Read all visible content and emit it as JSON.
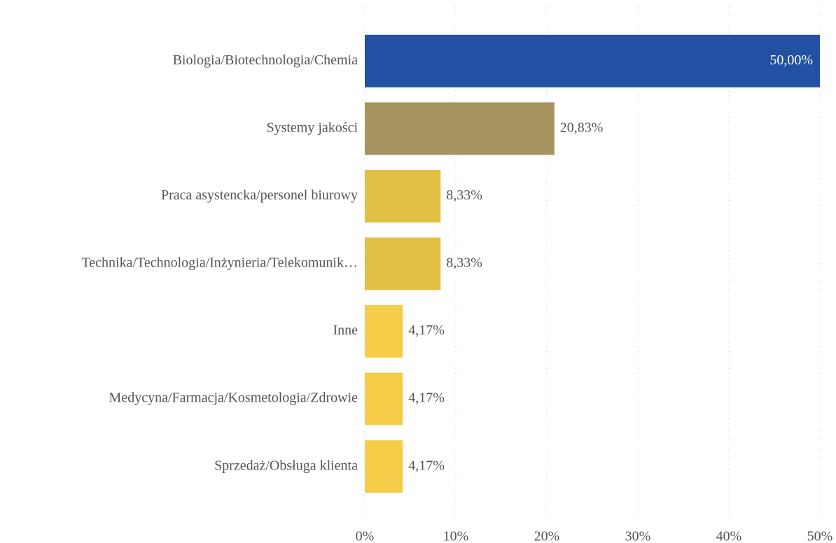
{
  "chart_data": {
    "type": "bar",
    "orientation": "horizontal",
    "categories": [
      "Biologia/Biotechnologia/Chemia",
      "Systemy jakości",
      "Praca asystencka/personel biurowy",
      "Technika/Technologia/Inżynieria/Telekomunik…",
      "Inne",
      "Medycyna/Farmacja/Kosmetologia/Zdrowie",
      "Sprzedaż/Obsługa klienta"
    ],
    "values": [
      50,
      20.83,
      8.33,
      8.33,
      4.17,
      4.17,
      4.17
    ],
    "value_labels": [
      "50,00%",
      "20,83%",
      "8,33%",
      "8,33%",
      "4,17%",
      "4,17%",
      "4,17%"
    ],
    "colors": [
      "#2251a3",
      "#a89460",
      "#e2bf45",
      "#e2bf45",
      "#f5cd48",
      "#f5cd48",
      "#f5cd48"
    ],
    "xlim": [
      0,
      50
    ],
    "xticks": [
      {
        "value": 0,
        "label": "0%"
      },
      {
        "value": 10,
        "label": "10%"
      },
      {
        "value": 20,
        "label": "20%"
      },
      {
        "value": 30,
        "label": "30%"
      },
      {
        "value": 40,
        "label": "40%"
      },
      {
        "value": 50,
        "label": "50%"
      }
    ],
    "grid": true
  }
}
